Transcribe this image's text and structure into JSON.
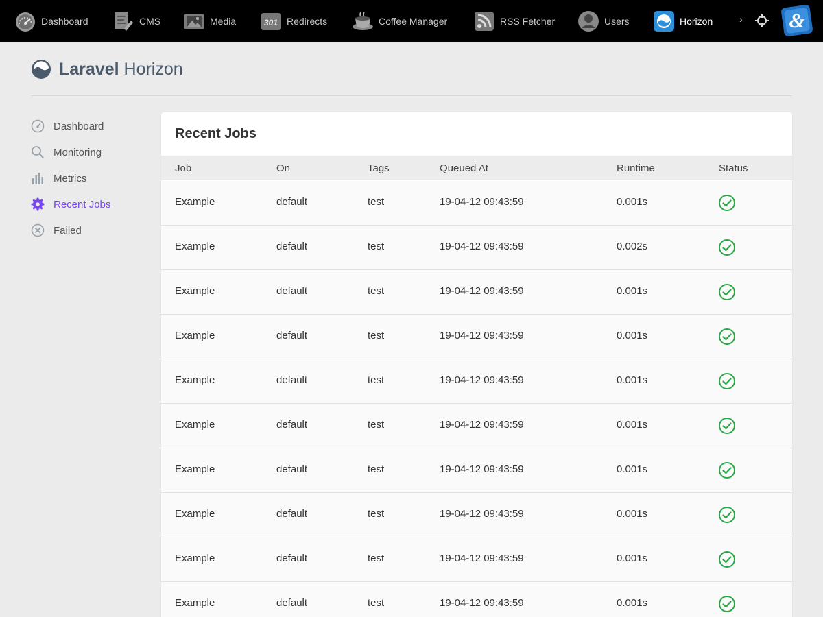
{
  "topbar": {
    "items": [
      {
        "label": "Dashboard",
        "icon": "speedometer-icon"
      },
      {
        "label": "CMS",
        "icon": "cms-document-icon"
      },
      {
        "label": "Media",
        "icon": "media-picture-icon"
      },
      {
        "label": "Redirects",
        "icon": "redirects-301-icon"
      },
      {
        "label": "Coffee Manager",
        "icon": "coffee-cup-icon"
      },
      {
        "label": "RSS Fetcher",
        "icon": "rss-icon"
      },
      {
        "label": "Users",
        "icon": "user-icon"
      },
      {
        "label": "Horizon",
        "icon": "horizon-icon"
      }
    ],
    "more": "›",
    "active": "Horizon"
  },
  "brand": {
    "bold": "Laravel",
    "light": "Horizon"
  },
  "sidebar": {
    "items": [
      {
        "label": "Dashboard",
        "icon": "gauge-icon"
      },
      {
        "label": "Monitoring",
        "icon": "search-icon"
      },
      {
        "label": "Metrics",
        "icon": "bar-chart-icon"
      },
      {
        "label": "Recent Jobs",
        "icon": "gear-icon"
      },
      {
        "label": "Failed",
        "icon": "x-circle-icon"
      }
    ],
    "active": "Recent Jobs",
    "active_color": "#7746ec"
  },
  "recent_jobs": {
    "title": "Recent Jobs",
    "columns": [
      "Job",
      "On",
      "Tags",
      "Queued At",
      "Runtime",
      "Status"
    ],
    "rows": [
      {
        "job": "Example",
        "on": "default",
        "tags": "test",
        "queued_at": "19-04-12 09:43:59",
        "runtime": "0.001s",
        "status": "completed"
      },
      {
        "job": "Example",
        "on": "default",
        "tags": "test",
        "queued_at": "19-04-12 09:43:59",
        "runtime": "0.002s",
        "status": "completed"
      },
      {
        "job": "Example",
        "on": "default",
        "tags": "test",
        "queued_at": "19-04-12 09:43:59",
        "runtime": "0.001s",
        "status": "completed"
      },
      {
        "job": "Example",
        "on": "default",
        "tags": "test",
        "queued_at": "19-04-12 09:43:59",
        "runtime": "0.001s",
        "status": "completed"
      },
      {
        "job": "Example",
        "on": "default",
        "tags": "test",
        "queued_at": "19-04-12 09:43:59",
        "runtime": "0.001s",
        "status": "completed"
      },
      {
        "job": "Example",
        "on": "default",
        "tags": "test",
        "queued_at": "19-04-12 09:43:59",
        "runtime": "0.001s",
        "status": "completed"
      },
      {
        "job": "Example",
        "on": "default",
        "tags": "test",
        "queued_at": "19-04-12 09:43:59",
        "runtime": "0.001s",
        "status": "completed"
      },
      {
        "job": "Example",
        "on": "default",
        "tags": "test",
        "queued_at": "19-04-12 09:43:59",
        "runtime": "0.001s",
        "status": "completed"
      },
      {
        "job": "Example",
        "on": "default",
        "tags": "test",
        "queued_at": "19-04-12 09:43:59",
        "runtime": "0.001s",
        "status": "completed"
      },
      {
        "job": "Example",
        "on": "default",
        "tags": "test",
        "queued_at": "19-04-12 09:43:59",
        "runtime": "0.001s",
        "status": "completed"
      }
    ],
    "status_color": "#28a745"
  }
}
